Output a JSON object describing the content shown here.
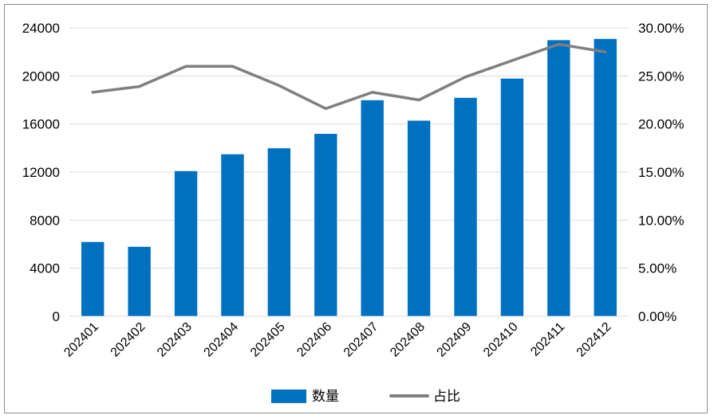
{
  "chart_data": {
    "type": "bar",
    "categories": [
      "202401",
      "202402",
      "202403",
      "202404",
      "202405",
      "202406",
      "202407",
      "202408",
      "202409",
      "202410",
      "202411",
      "202412"
    ],
    "series": [
      {
        "name": "数量",
        "type": "bar",
        "axis": "left",
        "color": "#0070C0",
        "values": [
          6200,
          5800,
          12100,
          13500,
          14000,
          15200,
          18000,
          16300,
          18200,
          19800,
          23000,
          23100
        ]
      },
      {
        "name": "占比",
        "type": "line",
        "axis": "right",
        "color": "#7F7F7F",
        "values": [
          0.233,
          0.239,
          0.26,
          0.26,
          0.24,
          0.216,
          0.233,
          0.225,
          0.249,
          0.266,
          0.283,
          0.275
        ]
      }
    ],
    "y_left": {
      "lim": [
        0,
        24000
      ],
      "ticks": [
        "0",
        "4000",
        "8000",
        "12000",
        "16000",
        "20000",
        "24000"
      ],
      "tick_values": [
        0,
        4000,
        8000,
        12000,
        16000,
        20000,
        24000
      ]
    },
    "y_right": {
      "lim": [
        0,
        0.3
      ],
      "ticks": [
        "0.00%",
        "5.00%",
        "10.00%",
        "15.00%",
        "20.00%",
        "25.00%",
        "30.00%"
      ],
      "tick_values": [
        0,
        0.05,
        0.1,
        0.15,
        0.2,
        0.25,
        0.3
      ]
    },
    "grid": "horizontal",
    "legend": "bottom-center"
  }
}
